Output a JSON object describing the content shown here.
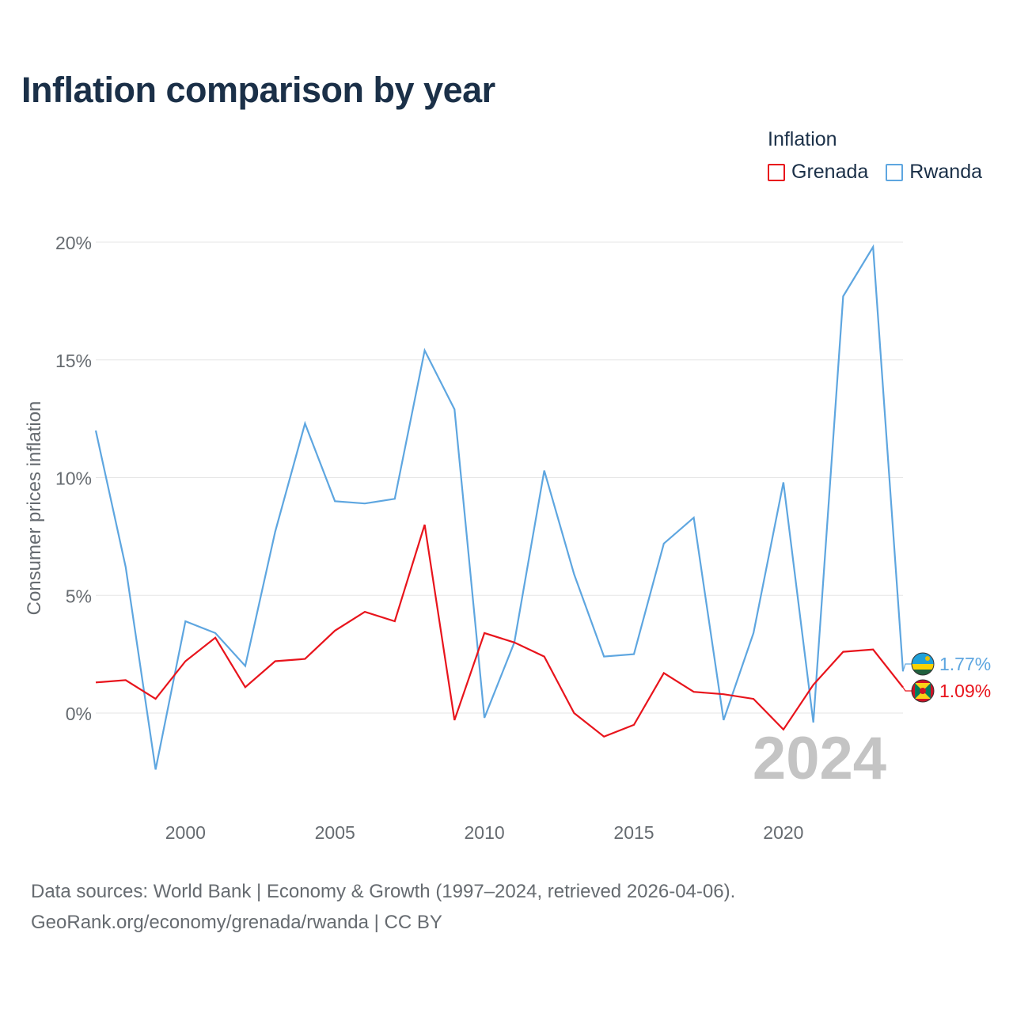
{
  "title": "Inflation comparison by year",
  "legend": {
    "title": "Inflation",
    "items": [
      {
        "name": "Grenada",
        "color": "#e8141c"
      },
      {
        "name": "Rwanda",
        "color": "#5ea6e0"
      }
    ]
  },
  "chart_data": {
    "type": "line",
    "title": "Inflation comparison by year",
    "xlabel": "",
    "ylabel": "Consumer prices inflation",
    "x": [
      1997,
      1998,
      1999,
      2000,
      2001,
      2002,
      2003,
      2004,
      2005,
      2006,
      2007,
      2008,
      2009,
      2010,
      2011,
      2012,
      2013,
      2014,
      2015,
      2016,
      2017,
      2018,
      2019,
      2020,
      2021,
      2022,
      2023,
      2024
    ],
    "xlim": [
      1997,
      2024
    ],
    "ylim": [
      -4.5,
      20
    ],
    "x_ticks": [
      2000,
      2005,
      2010,
      2015,
      2020
    ],
    "x_tick_labels": [
      "2000",
      "2005",
      "2010",
      "2015",
      "2020"
    ],
    "y_ticks": [
      0,
      5,
      10,
      15,
      20
    ],
    "y_tick_labels": [
      "0%",
      "5%",
      "10%",
      "15%",
      "20%"
    ],
    "grid": true,
    "watermark_year": "2024",
    "series": [
      {
        "name": "Rwanda",
        "color": "#5ea6e0",
        "end_label": "1.77%",
        "values": [
          12.0,
          6.2,
          -2.4,
          3.9,
          3.4,
          2.0,
          7.7,
          12.3,
          9.0,
          8.9,
          9.1,
          15.4,
          12.9,
          -0.2,
          3.0,
          10.3,
          5.9,
          2.4,
          2.5,
          7.2,
          8.3,
          -0.3,
          3.4,
          9.8,
          -0.4,
          17.7,
          19.8,
          1.77
        ]
      },
      {
        "name": "Grenada",
        "color": "#e8141c",
        "end_label": "1.09%",
        "values": [
          1.3,
          1.4,
          0.6,
          2.2,
          3.2,
          1.1,
          2.2,
          2.3,
          3.5,
          4.3,
          3.9,
          8.0,
          -0.3,
          3.4,
          3.0,
          2.4,
          0.0,
          -1.0,
          -0.5,
          1.7,
          0.9,
          0.8,
          0.6,
          -0.7,
          1.2,
          2.6,
          2.7,
          1.09
        ]
      }
    ]
  },
  "source": {
    "line1": "Data sources: World Bank | Economy & Growth (1997–2024, retrieved 2026-04-06).",
    "line2": "GeoRank.org/economy/grenada/rwanda | CC BY"
  }
}
